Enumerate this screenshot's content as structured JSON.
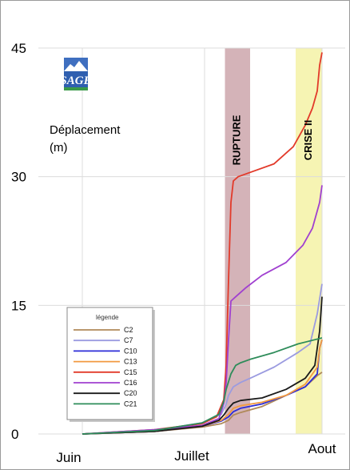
{
  "chart_data": {
    "type": "line",
    "ylabel_line1": "Déplacement",
    "ylabel_line2": "(m)",
    "yticks": [
      0,
      15,
      30,
      45
    ],
    "ylim": [
      0,
      45
    ],
    "xlim": [
      0,
      100
    ],
    "xticks": [
      {
        "label": "Juin",
        "x": 0
      },
      {
        "label": "Juillet",
        "x": 51
      },
      {
        "label": "Aout",
        "x": 100
      }
    ],
    "grid": true,
    "bands": [
      {
        "label": "RUPTURE",
        "x0": 59.5,
        "x1": 70,
        "color": "#c9a0a6"
      },
      {
        "label": "CRISE II",
        "x0": 89,
        "x1": 100,
        "color": "#f4f1a0"
      }
    ],
    "legend": {
      "title": "légende",
      "placement": "bottom-left"
    },
    "logo": {
      "text": "SAGE"
    },
    "series": [
      {
        "name": "C2",
        "color": "#b08a5a",
        "points": [
          [
            0,
            0
          ],
          [
            30,
            0.3
          ],
          [
            50,
            0.8
          ],
          [
            58,
            1.2
          ],
          [
            61,
            1.6
          ],
          [
            63,
            2.2
          ],
          [
            66,
            2.5
          ],
          [
            75,
            3.2
          ],
          [
            85,
            4.5
          ],
          [
            93,
            5.5
          ],
          [
            98,
            6.8
          ],
          [
            100,
            7.2
          ]
        ]
      },
      {
        "name": "C7",
        "color": "#9b9be0",
        "points": [
          [
            0,
            0
          ],
          [
            30,
            0.4
          ],
          [
            50,
            1.3
          ],
          [
            58,
            2.3
          ],
          [
            60,
            3.5
          ],
          [
            61,
            4.5
          ],
          [
            63,
            5.5
          ],
          [
            66,
            6
          ],
          [
            70,
            6.5
          ],
          [
            80,
            7.8
          ],
          [
            90,
            9.5
          ],
          [
            95,
            10.5
          ],
          [
            98,
            14
          ],
          [
            100,
            17.5
          ]
        ]
      },
      {
        "name": "C10",
        "color": "#2c2cd8",
        "points": [
          [
            0,
            0
          ],
          [
            30,
            0.3
          ],
          [
            50,
            0.9
          ],
          [
            58,
            1.5
          ],
          [
            61,
            2
          ],
          [
            63,
            2.6
          ],
          [
            66,
            3
          ],
          [
            75,
            3.5
          ],
          [
            85,
            4.5
          ],
          [
            93,
            5.5
          ],
          [
            98,
            7
          ],
          [
            99,
            10
          ],
          [
            100,
            11
          ]
        ]
      },
      {
        "name": "C13",
        "color": "#f29a40",
        "points": [
          [
            0,
            0
          ],
          [
            30,
            0.3
          ],
          [
            50,
            0.9
          ],
          [
            58,
            1.6
          ],
          [
            61,
            2.3
          ],
          [
            63,
            3
          ],
          [
            66,
            3.3
          ],
          [
            75,
            3.7
          ],
          [
            85,
            4.5
          ],
          [
            93,
            5.8
          ],
          [
            98,
            7.8
          ],
          [
            99,
            10
          ],
          [
            100,
            11
          ]
        ]
      },
      {
        "name": "C15",
        "color": "#e23a2a",
        "points": [
          [
            0,
            0
          ],
          [
            30,
            0.5
          ],
          [
            50,
            1.2
          ],
          [
            56,
            2
          ],
          [
            59,
            4
          ],
          [
            60,
            8
          ],
          [
            61,
            18
          ],
          [
            62,
            27
          ],
          [
            63,
            29.5
          ],
          [
            65,
            30
          ],
          [
            70,
            30.5
          ],
          [
            80,
            31.5
          ],
          [
            88,
            33.5
          ],
          [
            93,
            36
          ],
          [
            96,
            38
          ],
          [
            98,
            40
          ],
          [
            99,
            43
          ],
          [
            100,
            44.5
          ]
        ]
      },
      {
        "name": "C16",
        "color": "#a040d0",
        "points": [
          [
            0,
            0
          ],
          [
            30,
            0.5
          ],
          [
            50,
            1
          ],
          [
            57,
            1.8
          ],
          [
            59,
            3.5
          ],
          [
            60,
            6
          ],
          [
            61,
            11
          ],
          [
            62,
            15.5
          ],
          [
            64,
            16
          ],
          [
            68,
            17
          ],
          [
            75,
            18.5
          ],
          [
            85,
            20
          ],
          [
            92,
            22
          ],
          [
            96,
            24
          ],
          [
            99,
            27
          ],
          [
            100,
            29
          ]
        ]
      },
      {
        "name": "C20",
        "color": "#1a1a1a",
        "points": [
          [
            0,
            0
          ],
          [
            30,
            0.3
          ],
          [
            50,
            0.9
          ],
          [
            57,
            1.6
          ],
          [
            59,
            2.2
          ],
          [
            61,
            3
          ],
          [
            63,
            3.6
          ],
          [
            66,
            3.9
          ],
          [
            75,
            4.2
          ],
          [
            85,
            5.2
          ],
          [
            93,
            6.5
          ],
          [
            97,
            8
          ],
          [
            99,
            12
          ],
          [
            100,
            16
          ]
        ]
      },
      {
        "name": "C21",
        "color": "#2e8c5a",
        "points": [
          [
            0,
            0
          ],
          [
            30,
            0.4
          ],
          [
            50,
            1.3
          ],
          [
            57,
            2.3
          ],
          [
            59,
            3.8
          ],
          [
            60,
            5.2
          ],
          [
            62,
            7
          ],
          [
            64,
            8
          ],
          [
            66,
            8.3
          ],
          [
            70,
            8.7
          ],
          [
            80,
            9.5
          ],
          [
            90,
            10.5
          ],
          [
            100,
            11.2
          ]
        ]
      }
    ]
  }
}
